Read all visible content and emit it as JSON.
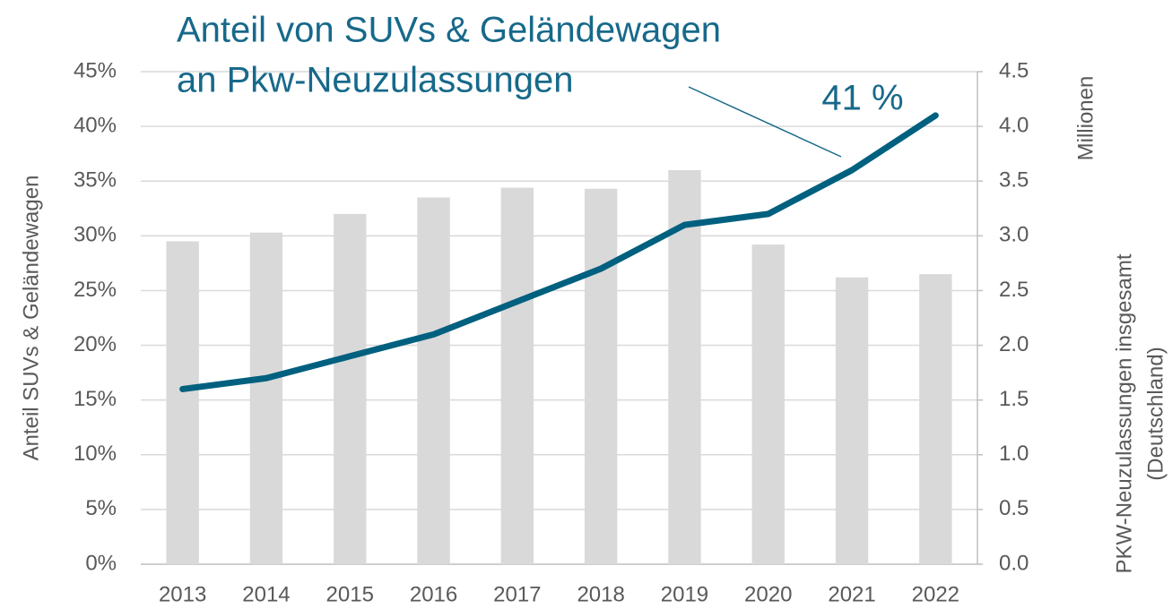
{
  "chart_data": {
    "type": "bar_line",
    "title": [
      "Anteil von SUVs & Geländewagen",
      "an Pkw-Neuzulassungen"
    ],
    "annotation": "41 %",
    "ylabel": "Anteil SUVs & Geländewagen",
    "y2label": [
      "PKW-Neuzulassungen insgesamt",
      "(Deutschland)"
    ],
    "y2unit": "Millionen",
    "categories": [
      "2013",
      "2014",
      "2015",
      "2016",
      "2017",
      "2018",
      "2019",
      "2020",
      "2021",
      "2022"
    ],
    "series": [
      {
        "name": "PKW-Neuzulassungen insgesamt",
        "kind": "bar",
        "axis": "y2",
        "color": "#d9d9d9",
        "values": [
          2.95,
          3.03,
          3.2,
          3.35,
          3.44,
          3.43,
          3.6,
          2.92,
          2.62,
          2.65
        ]
      },
      {
        "name": "Anteil SUVs & Geländewagen",
        "kind": "line",
        "axis": "y",
        "color": "#00607f",
        "values": [
          16,
          17,
          19,
          21,
          24,
          27,
          31,
          32,
          36,
          41
        ]
      }
    ],
    "ylim": [
      0,
      45
    ],
    "yticks": [
      {
        "value": 0,
        "label": "0%"
      },
      {
        "value": 5,
        "label": "5%"
      },
      {
        "value": 10,
        "label": "10%"
      },
      {
        "value": 15,
        "label": "15%"
      },
      {
        "value": 20,
        "label": "20%"
      },
      {
        "value": 25,
        "label": "25%"
      },
      {
        "value": 30,
        "label": "30%"
      },
      {
        "value": 35,
        "label": "35%"
      },
      {
        "value": 40,
        "label": "40%"
      },
      {
        "value": 45,
        "label": "45%"
      }
    ],
    "y2lim": [
      0,
      4.5
    ],
    "y2ticks": [
      {
        "value": 0,
        "label": "0.0"
      },
      0.5,
      {
        "value": 1,
        "label": "1.0"
      },
      1.5,
      {
        "value": 2,
        "label": "2.0"
      },
      2.5,
      {
        "value": 3,
        "label": "3.0"
      },
      3.5,
      {
        "value": 4,
        "label": "4.0"
      },
      4.5
    ],
    "grid": true
  }
}
